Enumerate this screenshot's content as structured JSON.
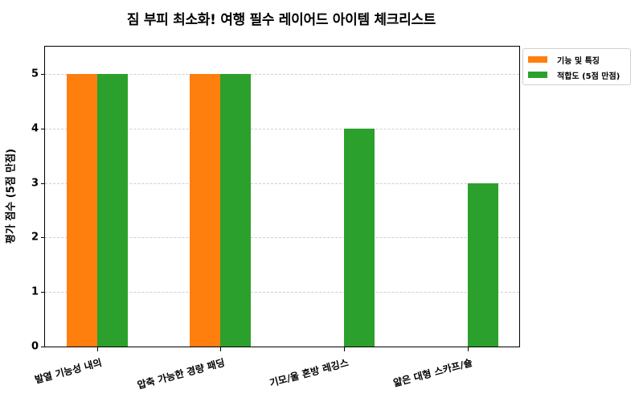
{
  "chart_data": {
    "type": "bar",
    "title": "짐 부피 최소화! 여행 필수 레이어드 아이템 체크리스트",
    "xlabel": "",
    "ylabel": "평가 점수 (5점 만점)",
    "ylim": [
      0,
      5.5
    ],
    "yticks": [
      0,
      1,
      2,
      3,
      4,
      5
    ],
    "grid": "y-dashed",
    "legend_position": "outside-upper-right",
    "categories": [
      "발열 기능성 내의",
      "압축 가능한 경량 패딩",
      "기모/울 혼방 레깅스",
      "얇은 대형 스카프/숄"
    ],
    "series": [
      {
        "name": "기능 및 특징",
        "color": "#ff7f0e",
        "values": [
          5,
          5,
          0,
          0
        ]
      },
      {
        "name": "적합도 (5점 만점)",
        "color": "#2ca02c",
        "values": [
          5,
          5,
          4,
          3
        ]
      }
    ]
  }
}
